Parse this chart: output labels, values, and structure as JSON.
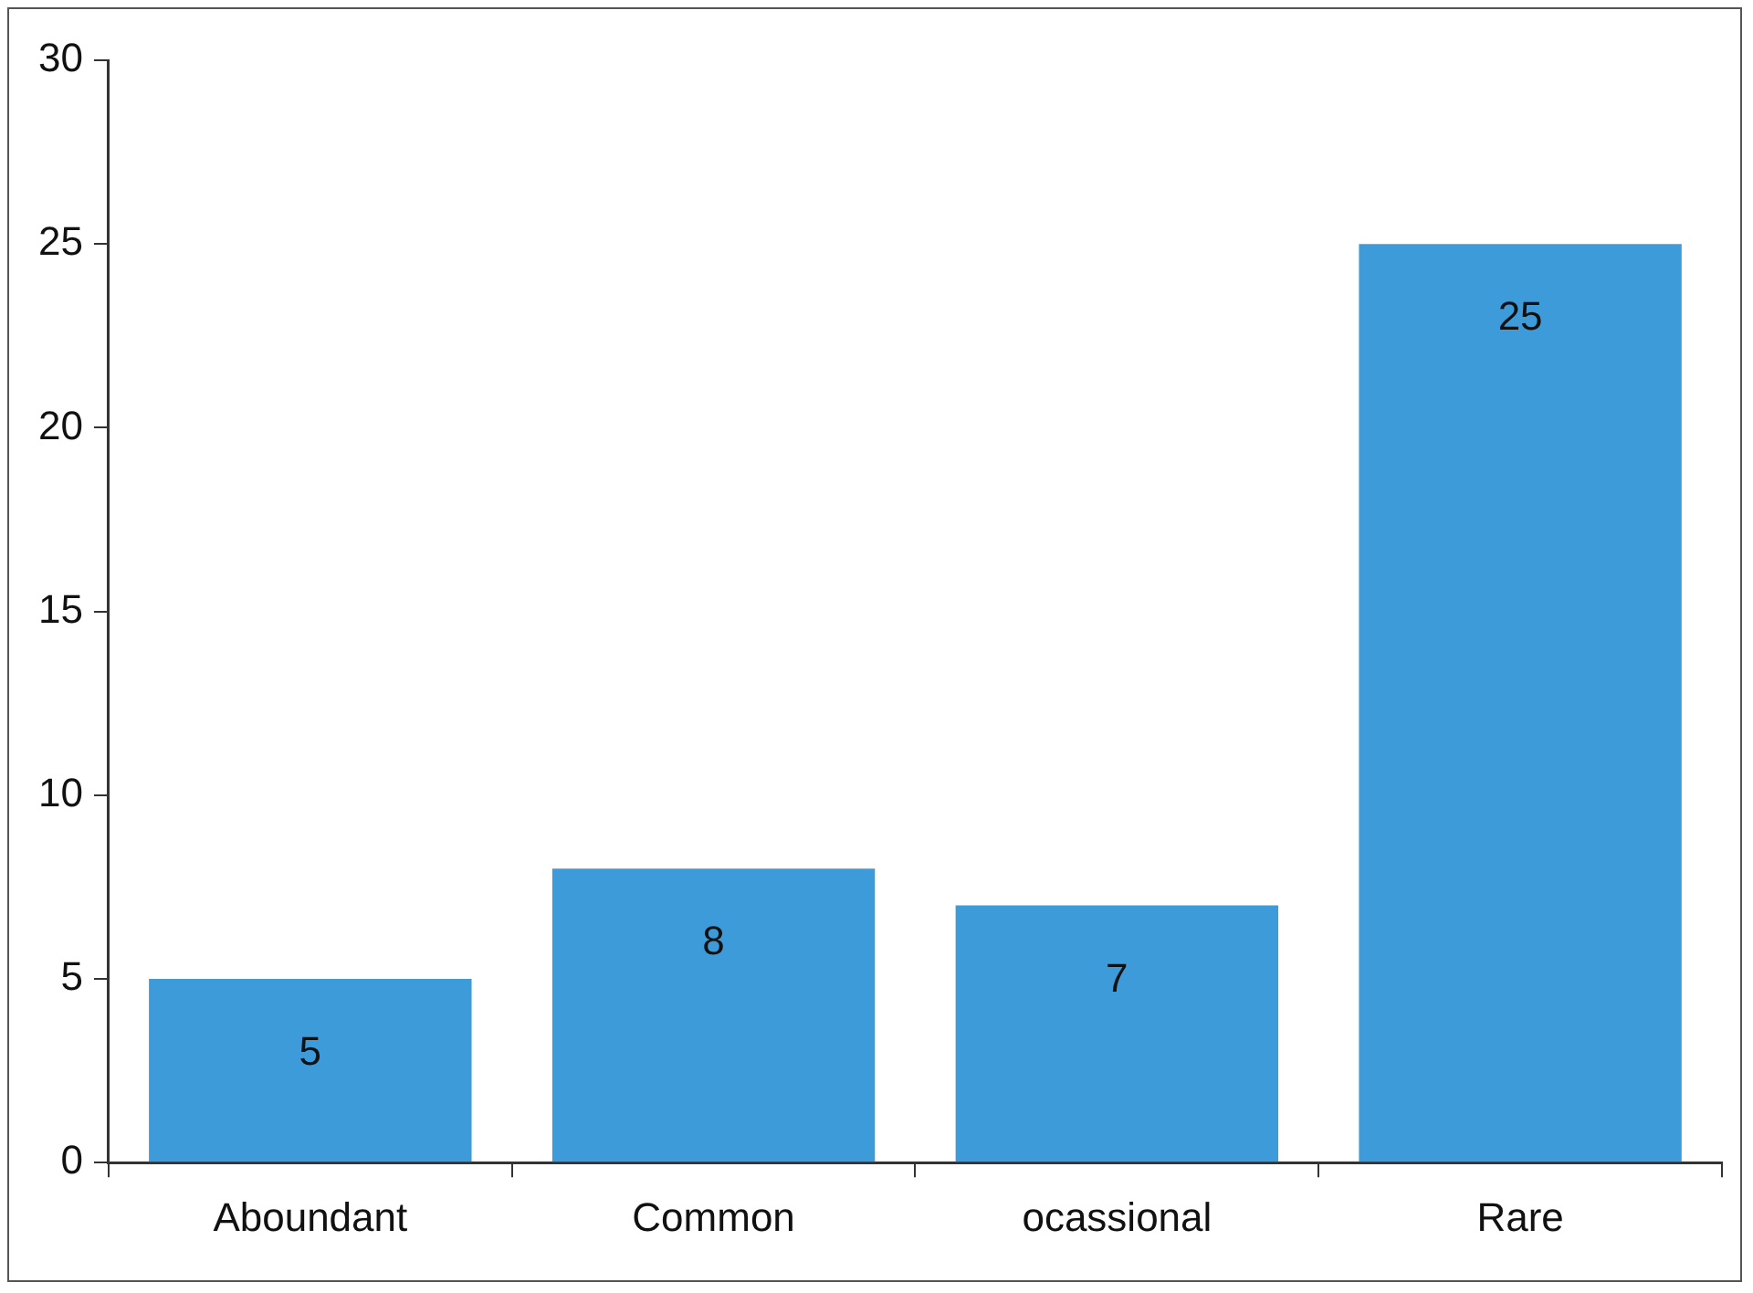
{
  "chart_data": {
    "type": "bar",
    "categories": [
      "Aboundant",
      "Common",
      "ocassional",
      "Rare"
    ],
    "values": [
      5,
      8,
      7,
      25
    ],
    "color": "#3d9bd9",
    "ylim": [
      0,
      30
    ],
    "yticks": [
      0,
      5,
      10,
      15,
      20,
      25,
      30
    ],
    "data_labels": true
  }
}
